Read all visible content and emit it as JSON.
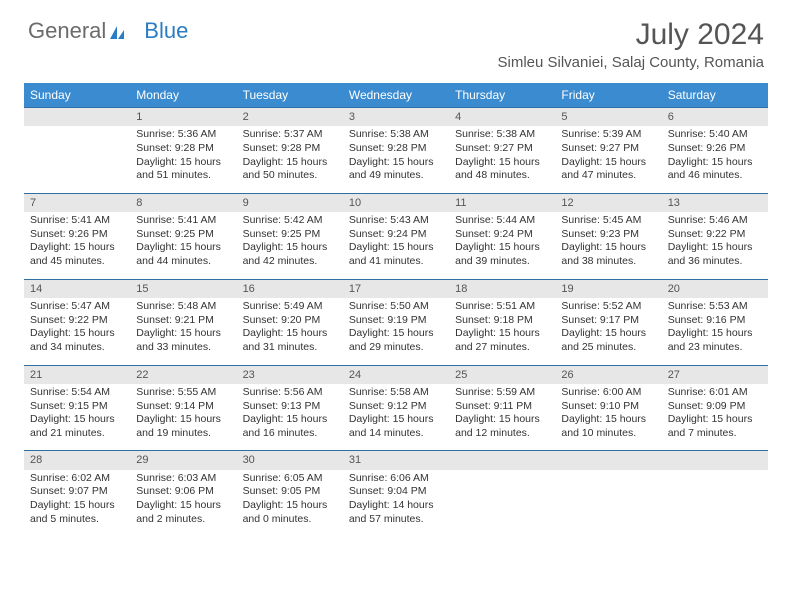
{
  "logo": {
    "part1": "General",
    "part2": "Blue"
  },
  "title": "July 2024",
  "location": "Simleu Silvaniei, Salaj County, Romania",
  "colors": {
    "header_bg": "#3a8bcf",
    "header_text": "#ffffff",
    "daynum_bg": "#e7e7e7",
    "row_divider": "#2f6fa6",
    "title_color": "#555555",
    "body_text": "#333333"
  },
  "weekdays": [
    "Sunday",
    "Monday",
    "Tuesday",
    "Wednesday",
    "Thursday",
    "Friday",
    "Saturday"
  ],
  "weeks": [
    [
      null,
      {
        "n": "1",
        "sr": "Sunrise: 5:36 AM",
        "ss": "Sunset: 9:28 PM",
        "dl": "Daylight: 15 hours and 51 minutes."
      },
      {
        "n": "2",
        "sr": "Sunrise: 5:37 AM",
        "ss": "Sunset: 9:28 PM",
        "dl": "Daylight: 15 hours and 50 minutes."
      },
      {
        "n": "3",
        "sr": "Sunrise: 5:38 AM",
        "ss": "Sunset: 9:28 PM",
        "dl": "Daylight: 15 hours and 49 minutes."
      },
      {
        "n": "4",
        "sr": "Sunrise: 5:38 AM",
        "ss": "Sunset: 9:27 PM",
        "dl": "Daylight: 15 hours and 48 minutes."
      },
      {
        "n": "5",
        "sr": "Sunrise: 5:39 AM",
        "ss": "Sunset: 9:27 PM",
        "dl": "Daylight: 15 hours and 47 minutes."
      },
      {
        "n": "6",
        "sr": "Sunrise: 5:40 AM",
        "ss": "Sunset: 9:26 PM",
        "dl": "Daylight: 15 hours and 46 minutes."
      }
    ],
    [
      {
        "n": "7",
        "sr": "Sunrise: 5:41 AM",
        "ss": "Sunset: 9:26 PM",
        "dl": "Daylight: 15 hours and 45 minutes."
      },
      {
        "n": "8",
        "sr": "Sunrise: 5:41 AM",
        "ss": "Sunset: 9:25 PM",
        "dl": "Daylight: 15 hours and 44 minutes."
      },
      {
        "n": "9",
        "sr": "Sunrise: 5:42 AM",
        "ss": "Sunset: 9:25 PM",
        "dl": "Daylight: 15 hours and 42 minutes."
      },
      {
        "n": "10",
        "sr": "Sunrise: 5:43 AM",
        "ss": "Sunset: 9:24 PM",
        "dl": "Daylight: 15 hours and 41 minutes."
      },
      {
        "n": "11",
        "sr": "Sunrise: 5:44 AM",
        "ss": "Sunset: 9:24 PM",
        "dl": "Daylight: 15 hours and 39 minutes."
      },
      {
        "n": "12",
        "sr": "Sunrise: 5:45 AM",
        "ss": "Sunset: 9:23 PM",
        "dl": "Daylight: 15 hours and 38 minutes."
      },
      {
        "n": "13",
        "sr": "Sunrise: 5:46 AM",
        "ss": "Sunset: 9:22 PM",
        "dl": "Daylight: 15 hours and 36 minutes."
      }
    ],
    [
      {
        "n": "14",
        "sr": "Sunrise: 5:47 AM",
        "ss": "Sunset: 9:22 PM",
        "dl": "Daylight: 15 hours and 34 minutes."
      },
      {
        "n": "15",
        "sr": "Sunrise: 5:48 AM",
        "ss": "Sunset: 9:21 PM",
        "dl": "Daylight: 15 hours and 33 minutes."
      },
      {
        "n": "16",
        "sr": "Sunrise: 5:49 AM",
        "ss": "Sunset: 9:20 PM",
        "dl": "Daylight: 15 hours and 31 minutes."
      },
      {
        "n": "17",
        "sr": "Sunrise: 5:50 AM",
        "ss": "Sunset: 9:19 PM",
        "dl": "Daylight: 15 hours and 29 minutes."
      },
      {
        "n": "18",
        "sr": "Sunrise: 5:51 AM",
        "ss": "Sunset: 9:18 PM",
        "dl": "Daylight: 15 hours and 27 minutes."
      },
      {
        "n": "19",
        "sr": "Sunrise: 5:52 AM",
        "ss": "Sunset: 9:17 PM",
        "dl": "Daylight: 15 hours and 25 minutes."
      },
      {
        "n": "20",
        "sr": "Sunrise: 5:53 AM",
        "ss": "Sunset: 9:16 PM",
        "dl": "Daylight: 15 hours and 23 minutes."
      }
    ],
    [
      {
        "n": "21",
        "sr": "Sunrise: 5:54 AM",
        "ss": "Sunset: 9:15 PM",
        "dl": "Daylight: 15 hours and 21 minutes."
      },
      {
        "n": "22",
        "sr": "Sunrise: 5:55 AM",
        "ss": "Sunset: 9:14 PM",
        "dl": "Daylight: 15 hours and 19 minutes."
      },
      {
        "n": "23",
        "sr": "Sunrise: 5:56 AM",
        "ss": "Sunset: 9:13 PM",
        "dl": "Daylight: 15 hours and 16 minutes."
      },
      {
        "n": "24",
        "sr": "Sunrise: 5:58 AM",
        "ss": "Sunset: 9:12 PM",
        "dl": "Daylight: 15 hours and 14 minutes."
      },
      {
        "n": "25",
        "sr": "Sunrise: 5:59 AM",
        "ss": "Sunset: 9:11 PM",
        "dl": "Daylight: 15 hours and 12 minutes."
      },
      {
        "n": "26",
        "sr": "Sunrise: 6:00 AM",
        "ss": "Sunset: 9:10 PM",
        "dl": "Daylight: 15 hours and 10 minutes."
      },
      {
        "n": "27",
        "sr": "Sunrise: 6:01 AM",
        "ss": "Sunset: 9:09 PM",
        "dl": "Daylight: 15 hours and 7 minutes."
      }
    ],
    [
      {
        "n": "28",
        "sr": "Sunrise: 6:02 AM",
        "ss": "Sunset: 9:07 PM",
        "dl": "Daylight: 15 hours and 5 minutes."
      },
      {
        "n": "29",
        "sr": "Sunrise: 6:03 AM",
        "ss": "Sunset: 9:06 PM",
        "dl": "Daylight: 15 hours and 2 minutes."
      },
      {
        "n": "30",
        "sr": "Sunrise: 6:05 AM",
        "ss": "Sunset: 9:05 PM",
        "dl": "Daylight: 15 hours and 0 minutes."
      },
      {
        "n": "31",
        "sr": "Sunrise: 6:06 AM",
        "ss": "Sunset: 9:04 PM",
        "dl": "Daylight: 14 hours and 57 minutes."
      },
      null,
      null,
      null
    ]
  ]
}
